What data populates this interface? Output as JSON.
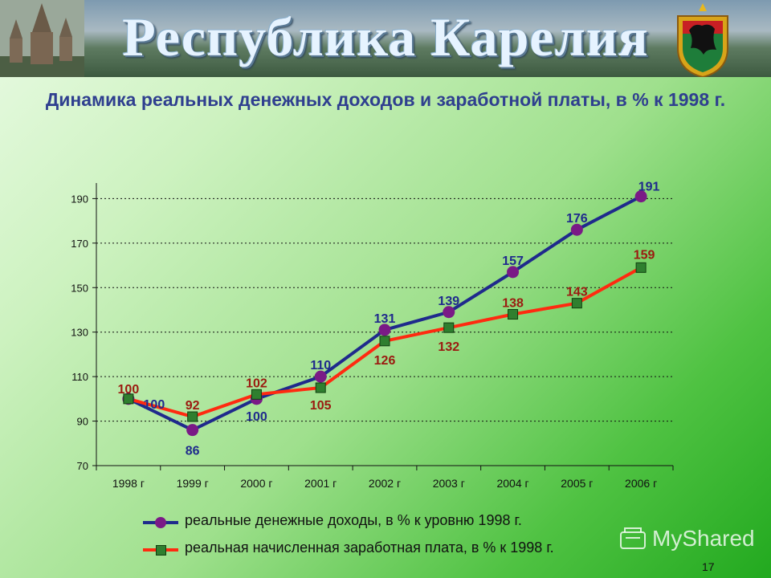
{
  "banner": {
    "title": "Республика Карелия"
  },
  "heading": "Динамика реальных денежных доходов и заработной платы, в % к 1998 г.",
  "chart_data": {
    "type": "line",
    "categories": [
      "1998 г",
      "1999 г",
      "2000 г",
      "2001 г",
      "2002 г",
      "2003 г",
      "2004 г",
      "2005 г",
      "2006 г"
    ],
    "ylim": [
      70,
      197
    ],
    "yticks": [
      70,
      90,
      110,
      130,
      150,
      170,
      190
    ],
    "grid": "horizontal dotted",
    "legend_position": "bottom",
    "series": [
      {
        "name": "реальные денежные доходы, в % к уровню 1998 г.",
        "values": [
          100,
          86,
          100,
          110,
          131,
          139,
          157,
          176,
          191
        ],
        "color": "#1f2a8c",
        "marker_color": "#7a1a86",
        "marker": "circle",
        "label_color": "#1f2a8c"
      },
      {
        "name": "реальная начисленная заработная плата, в % к 1998 г.",
        "values": [
          100,
          92,
          102,
          105,
          126,
          132,
          138,
          143,
          159
        ],
        "color": "#ff2a10",
        "marker_color": "#2f7f2f",
        "marker": "square",
        "label_color": "#9b1a10"
      }
    ]
  },
  "watermark": "MyShared",
  "page_number": "17",
  "colors": {
    "heading": "#2f3f8f",
    "income": "#1f2a8c",
    "wage": "#ff2a10"
  }
}
